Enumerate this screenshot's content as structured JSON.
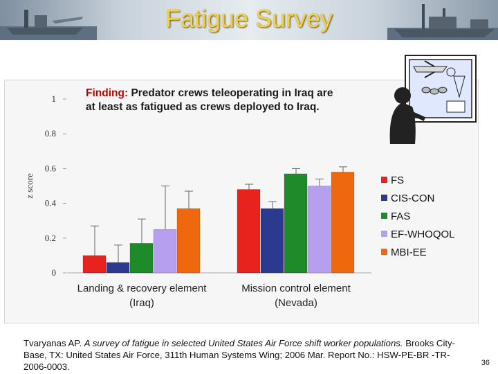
{
  "slide": {
    "title": "Fatigue Survey",
    "page_number": "36"
  },
  "finding": {
    "label": "Finding:",
    "text": "Predator crews teleoperating in Iraq are at least as fatigued as crews deployed to Iraq."
  },
  "citation": {
    "prefix": "Tvaryanas AP.",
    "title": "A survey of fatigue in selected United States Air Force shift worker populations.",
    "suffix": "Brooks City-Base, TX: United States Air Force, 311th Human Systems Wing; 2006 Mar. Report No.: HSW-PE-BR -TR-2006-0003."
  },
  "chart_data": {
    "type": "bar",
    "ylabel": "z score",
    "ylim": [
      0,
      1
    ],
    "yticks": [
      "0",
      "0.2",
      "0.4",
      "0.6",
      "0.8",
      "1"
    ],
    "categories": [
      "Landing & recovery element (Iraq)",
      "Mission control element (Nevada)"
    ],
    "category_lines": [
      [
        "Landing & recovery element",
        "(Iraq)"
      ],
      [
        "Mission control element",
        "(Nevada)"
      ]
    ],
    "legend_position": "right",
    "series": [
      {
        "name": "FS",
        "color": "#e8221c",
        "values": [
          0.1,
          0.48
        ],
        "err": [
          0.17,
          0.03
        ]
      },
      {
        "name": "CIS-CON",
        "color": "#2b3a8f",
        "values": [
          0.06,
          0.37
        ],
        "err": [
          0.1,
          0.04
        ]
      },
      {
        "name": "FAS",
        "color": "#1e8a2a",
        "values": [
          0.17,
          0.57
        ],
        "err": [
          0.14,
          0.03
        ]
      },
      {
        "name": "EF-WHOQOL",
        "color": "#b79ff0",
        "values": [
          0.25,
          0.5
        ],
        "err": [
          0.25,
          0.04
        ]
      },
      {
        "name": "MBI-EE",
        "color": "#f0680e",
        "values": [
          0.37,
          0.58
        ],
        "err": [
          0.1,
          0.03
        ]
      }
    ]
  }
}
